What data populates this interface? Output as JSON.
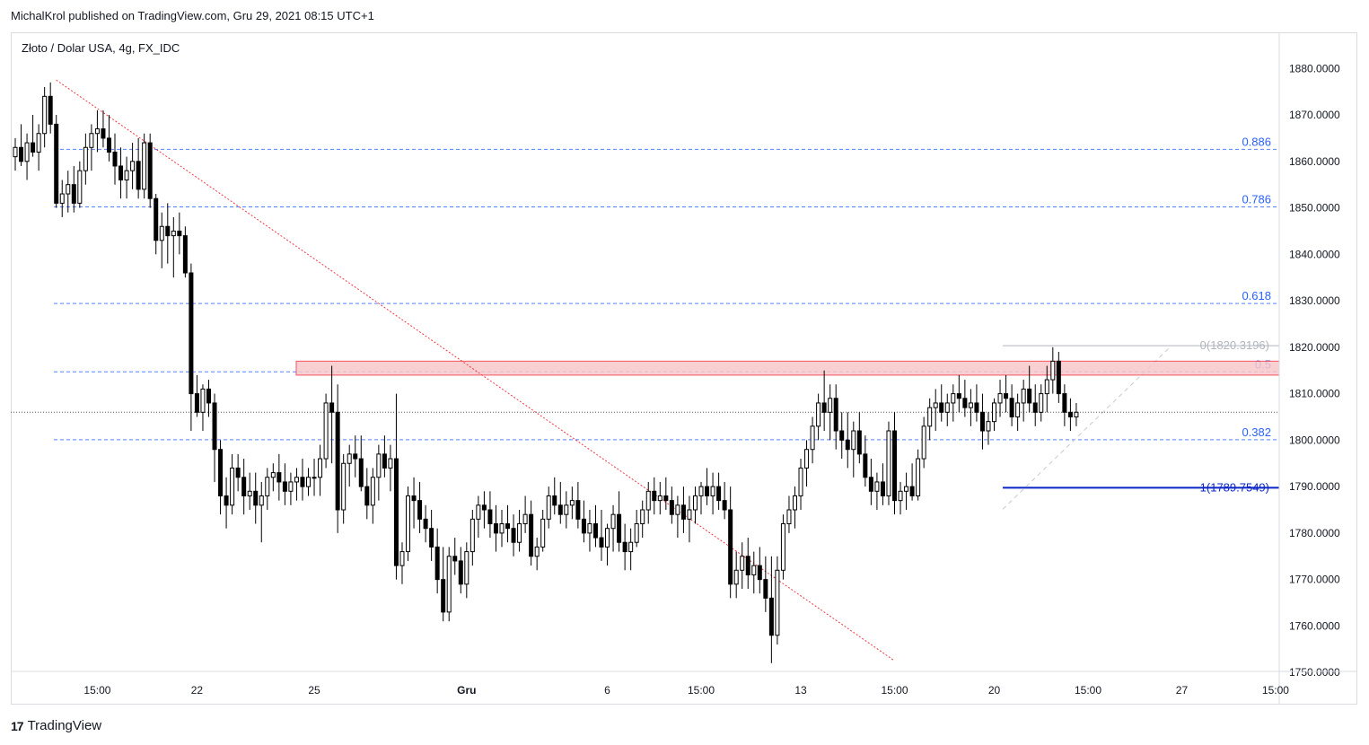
{
  "header": {
    "published": "MichalKrol published on TradingView.com, Gru 29, 2021 08:15 UTC+1",
    "symbol": "Złoto / Dolar USA, 4g, FX_IDC"
  },
  "footer": {
    "brand": "TradingView",
    "logo_glyph": "17"
  },
  "colors": {
    "grid_border": "#d9dbe1",
    "fib_line": "#2962ff",
    "fib_label": "#2962ff",
    "candle_up": "#ffffff",
    "candle_down": "#000000",
    "trendline": "#f23645",
    "zone_fill": "#f7c8cb",
    "zone_stroke": "#f23645"
  },
  "chart_data": {
    "type": "candlestick",
    "y_axis": {
      "ticks": [
        1750,
        1760,
        1770,
        1780,
        1790,
        1800,
        1810,
        1820,
        1830,
        1840,
        1850,
        1860,
        1870,
        1880
      ],
      "tick_labels": [
        "1750.0000",
        "1760.0000",
        "1770.0000",
        "1780.0000",
        "1790.0000",
        "1800.0000",
        "1810.0000",
        "1820.0000",
        "1830.0000",
        "1840.0000",
        "1850.0000",
        "1860.0000",
        "1870.0000",
        "1880.0000"
      ],
      "range": [
        1745,
        1886
      ]
    },
    "x_axis": {
      "labels": [
        "15:00",
        "22",
        "25",
        "Gru",
        "6",
        "15:00",
        "13",
        "15:00",
        "20",
        "15:00",
        "27",
        "15:00"
      ],
      "label_bold": [
        false,
        false,
        false,
        true,
        false,
        false,
        false,
        false,
        false,
        false,
        false,
        false
      ],
      "bar_index": [
        14,
        31,
        51,
        77,
        101,
        117,
        134,
        150,
        167,
        183,
        199,
        215
      ]
    },
    "current_price": 1806,
    "fib_levels": [
      {
        "label": "0.886",
        "value": 1862.6
      },
      {
        "label": "0.786",
        "value": 1850.2
      },
      {
        "label": "0.618",
        "value": 1829.4
      },
      {
        "label": "0.5",
        "value": 1814.7
      },
      {
        "label": "0.382",
        "value": 1800.1
      }
    ],
    "fib_anchor_top": {
      "label": "0(1820.3196)",
      "value": 1820.3196
    },
    "fib_anchor_bottom": {
      "label": "1(1789.7549)",
      "value": 1789.7549
    },
    "resistance_zone": {
      "from": 1814.0,
      "to": 1817.0
    },
    "trendline": {
      "start": [
        7,
        1877.5
      ],
      "end": [
        150,
        1752.5
      ]
    },
    "candles": [
      [
        1861,
        1865,
        1858,
        1863
      ],
      [
        1863,
        1868,
        1859,
        1860
      ],
      [
        1860,
        1866,
        1856,
        1864
      ],
      [
        1864,
        1870,
        1861,
        1862
      ],
      [
        1862,
        1868,
        1858,
        1866
      ],
      [
        1866,
        1876,
        1863,
        1874
      ],
      [
        1874,
        1877,
        1866,
        1868
      ],
      [
        1868,
        1870,
        1850,
        1851
      ],
      [
        1851,
        1856,
        1848,
        1853
      ],
      [
        1853,
        1858,
        1849,
        1855
      ],
      [
        1855,
        1859,
        1849,
        1851
      ],
      [
        1851,
        1860,
        1850,
        1858
      ],
      [
        1858,
        1866,
        1855,
        1863
      ],
      [
        1863,
        1868,
        1858,
        1866
      ],
      [
        1866,
        1871,
        1862,
        1867
      ],
      [
        1867,
        1871,
        1863,
        1865
      ],
      [
        1865,
        1870,
        1860,
        1862
      ],
      [
        1862,
        1866,
        1855,
        1859
      ],
      [
        1859,
        1863,
        1852,
        1856
      ],
      [
        1856,
        1861,
        1852,
        1858
      ],
      [
        1858,
        1864,
        1854,
        1860
      ],
      [
        1860,
        1865,
        1852,
        1854
      ],
      [
        1854,
        1866,
        1852,
        1864
      ],
      [
        1864,
        1866,
        1850,
        1852
      ],
      [
        1852,
        1853,
        1840,
        1843
      ],
      [
        1843,
        1849,
        1837,
        1846
      ],
      [
        1846,
        1851,
        1838,
        1844
      ],
      [
        1844,
        1848,
        1835,
        1845
      ],
      [
        1845,
        1849,
        1840,
        1844
      ],
      [
        1844,
        1846,
        1835,
        1836
      ],
      [
        1836,
        1838,
        1802,
        1810
      ],
      [
        1810,
        1814,
        1805,
        1806
      ],
      [
        1806,
        1812,
        1802,
        1811
      ],
      [
        1811,
        1813,
        1805,
        1808
      ],
      [
        1808,
        1810,
        1791,
        1798
      ],
      [
        1798,
        1800,
        1784,
        1788
      ],
      [
        1788,
        1792,
        1781,
        1786
      ],
      [
        1786,
        1797,
        1784,
        1794
      ],
      [
        1794,
        1797,
        1789,
        1792
      ],
      [
        1792,
        1796,
        1784,
        1788
      ],
      [
        1788,
        1793,
        1785,
        1789
      ],
      [
        1789,
        1793,
        1782,
        1786
      ],
      [
        1786,
        1791,
        1778,
        1788
      ],
      [
        1788,
        1794,
        1785,
        1792
      ],
      [
        1792,
        1795,
        1789,
        1793
      ],
      [
        1793,
        1797,
        1787,
        1791
      ],
      [
        1791,
        1795,
        1786,
        1789
      ],
      [
        1789,
        1793,
        1786,
        1791
      ],
      [
        1791,
        1794,
        1787,
        1792
      ],
      [
        1792,
        1796,
        1787,
        1790
      ],
      [
        1790,
        1794,
        1788,
        1792
      ],
      [
        1792,
        1796,
        1788,
        1792
      ],
      [
        1792,
        1799,
        1788,
        1796
      ],
      [
        1796,
        1810,
        1794,
        1808
      ],
      [
        1808,
        1816,
        1795,
        1806
      ],
      [
        1806,
        1812,
        1780,
        1785
      ],
      [
        1785,
        1797,
        1782,
        1795
      ],
      [
        1795,
        1799,
        1790,
        1797
      ],
      [
        1797,
        1801,
        1792,
        1796
      ],
      [
        1796,
        1801,
        1789,
        1790
      ],
      [
        1790,
        1794,
        1783,
        1786
      ],
      [
        1786,
        1794,
        1782,
        1792
      ],
      [
        1792,
        1799,
        1787,
        1797
      ],
      [
        1797,
        1801,
        1792,
        1794
      ],
      [
        1794,
        1799,
        1789,
        1796
      ],
      [
        1796,
        1810,
        1770,
        1773
      ],
      [
        1773,
        1778,
        1769,
        1776
      ],
      [
        1776,
        1790,
        1774,
        1788
      ],
      [
        1788,
        1792,
        1781,
        1787
      ],
      [
        1787,
        1791,
        1780,
        1783
      ],
      [
        1783,
        1786,
        1778,
        1781
      ],
      [
        1781,
        1785,
        1774,
        1777
      ],
      [
        1777,
        1781,
        1767,
        1770
      ],
      [
        1770,
        1777,
        1761,
        1763
      ],
      [
        1763,
        1777,
        1761,
        1775
      ],
      [
        1775,
        1779,
        1771,
        1774
      ],
      [
        1774,
        1777,
        1767,
        1769
      ],
      [
        1769,
        1778,
        1766,
        1776
      ],
      [
        1776,
        1785,
        1773,
        1783
      ],
      [
        1783,
        1788,
        1779,
        1786
      ],
      [
        1786,
        1789,
        1781,
        1785
      ],
      [
        1785,
        1789,
        1779,
        1782
      ],
      [
        1782,
        1786,
        1776,
        1780
      ],
      [
        1780,
        1785,
        1777,
        1782
      ],
      [
        1782,
        1786,
        1778,
        1781
      ],
      [
        1781,
        1784,
        1775,
        1778
      ],
      [
        1778,
        1785,
        1776,
        1782
      ],
      [
        1782,
        1788,
        1780,
        1784
      ],
      [
        1784,
        1787,
        1773,
        1775
      ],
      [
        1775,
        1779,
        1772,
        1777
      ],
      [
        1777,
        1785,
        1776,
        1783
      ],
      [
        1783,
        1790,
        1781,
        1788
      ],
      [
        1788,
        1792,
        1784,
        1786
      ],
      [
        1786,
        1791,
        1782,
        1784
      ],
      [
        1784,
        1789,
        1781,
        1786
      ],
      [
        1786,
        1790,
        1783,
        1787
      ],
      [
        1787,
        1791,
        1781,
        1783
      ],
      [
        1783,
        1787,
        1778,
        1780
      ],
      [
        1780,
        1785,
        1776,
        1782
      ],
      [
        1782,
        1786,
        1777,
        1779
      ],
      [
        1779,
        1785,
        1774,
        1777
      ],
      [
        1777,
        1782,
        1773,
        1781
      ],
      [
        1781,
        1786,
        1776,
        1784
      ],
      [
        1784,
        1789,
        1776,
        1778
      ],
      [
        1778,
        1782,
        1772,
        1776
      ],
      [
        1776,
        1781,
        1772,
        1778
      ],
      [
        1778,
        1785,
        1777,
        1782
      ],
      [
        1782,
        1787,
        1779,
        1785
      ],
      [
        1785,
        1791,
        1782,
        1789
      ],
      [
        1789,
        1792,
        1784,
        1787
      ],
      [
        1787,
        1791,
        1784,
        1788
      ],
      [
        1788,
        1792,
        1785,
        1787
      ],
      [
        1787,
        1790,
        1782,
        1784
      ],
      [
        1784,
        1788,
        1779,
        1786
      ],
      [
        1786,
        1790,
        1780,
        1783
      ],
      [
        1783,
        1788,
        1778,
        1785
      ],
      [
        1785,
        1790,
        1782,
        1788
      ],
      [
        1788,
        1791,
        1784,
        1790
      ],
      [
        1790,
        1794,
        1786,
        1788
      ],
      [
        1788,
        1793,
        1784,
        1790
      ],
      [
        1790,
        1793,
        1785,
        1787
      ],
      [
        1787,
        1791,
        1783,
        1785
      ],
      [
        1785,
        1790,
        1766,
        1769
      ],
      [
        1769,
        1776,
        1766,
        1772
      ],
      [
        1772,
        1778,
        1768,
        1775
      ],
      [
        1775,
        1779,
        1768,
        1771
      ],
      [
        1771,
        1776,
        1767,
        1773
      ],
      [
        1773,
        1777,
        1767,
        1770
      ],
      [
        1770,
        1775,
        1763,
        1766
      ],
      [
        1766,
        1775,
        1752,
        1758
      ],
      [
        1758,
        1775,
        1756,
        1772
      ],
      [
        1772,
        1784,
        1770,
        1782
      ],
      [
        1782,
        1788,
        1780,
        1785
      ],
      [
        1785,
        1790,
        1781,
        1788
      ],
      [
        1788,
        1796,
        1785,
        1794
      ],
      [
        1794,
        1800,
        1790,
        1798
      ],
      [
        1798,
        1805,
        1795,
        1803
      ],
      [
        1803,
        1810,
        1800,
        1808
      ],
      [
        1808,
        1815,
        1802,
        1806
      ],
      [
        1806,
        1812,
        1800,
        1809
      ],
      [
        1809,
        1812,
        1798,
        1802
      ],
      [
        1802,
        1806,
        1796,
        1800
      ],
      [
        1800,
        1806,
        1794,
        1798
      ],
      [
        1798,
        1804,
        1792,
        1802
      ],
      [
        1802,
        1806,
        1795,
        1797
      ],
      [
        1797,
        1801,
        1790,
        1792
      ],
      [
        1792,
        1796,
        1786,
        1789
      ],
      [
        1789,
        1793,
        1785,
        1791
      ],
      [
        1791,
        1795,
        1786,
        1788
      ],
      [
        1788,
        1804,
        1786,
        1802
      ],
      [
        1802,
        1806,
        1784,
        1787
      ],
      [
        1787,
        1791,
        1784,
        1789
      ],
      [
        1789,
        1793,
        1785,
        1790
      ],
      [
        1790,
        1795,
        1787,
        1788
      ],
      [
        1788,
        1798,
        1787,
        1796
      ],
      [
        1796,
        1805,
        1794,
        1803
      ],
      [
        1803,
        1809,
        1800,
        1807
      ],
      [
        1807,
        1811,
        1802,
        1808
      ],
      [
        1808,
        1812,
        1804,
        1806
      ],
      [
        1806,
        1810,
        1803,
        1808
      ],
      [
        1808,
        1812,
        1804,
        1810
      ],
      [
        1810,
        1814,
        1806,
        1809
      ],
      [
        1809,
        1813,
        1805,
        1807
      ],
      [
        1807,
        1811,
        1803,
        1808
      ],
      [
        1808,
        1812,
        1804,
        1806
      ],
      [
        1806,
        1810,
        1798,
        1802
      ],
      [
        1802,
        1806,
        1799,
        1804
      ],
      [
        1804,
        1809,
        1802,
        1808
      ],
      [
        1808,
        1813,
        1805,
        1810
      ],
      [
        1810,
        1814,
        1806,
        1809
      ],
      [
        1809,
        1812,
        1803,
        1805
      ],
      [
        1805,
        1810,
        1802,
        1808
      ],
      [
        1808,
        1813,
        1804,
        1811
      ],
      [
        1811,
        1816,
        1806,
        1808
      ],
      [
        1808,
        1812,
        1803,
        1806
      ],
      [
        1806,
        1812,
        1804,
        1810
      ],
      [
        1810,
        1816,
        1806,
        1813
      ],
      [
        1813,
        1820,
        1810,
        1817
      ],
      [
        1817,
        1819,
        1808,
        1810
      ],
      [
        1810,
        1812,
        1803,
        1806
      ],
      [
        1806,
        1809,
        1802,
        1805
      ],
      [
        1805,
        1808,
        1803,
        1806
      ]
    ]
  }
}
